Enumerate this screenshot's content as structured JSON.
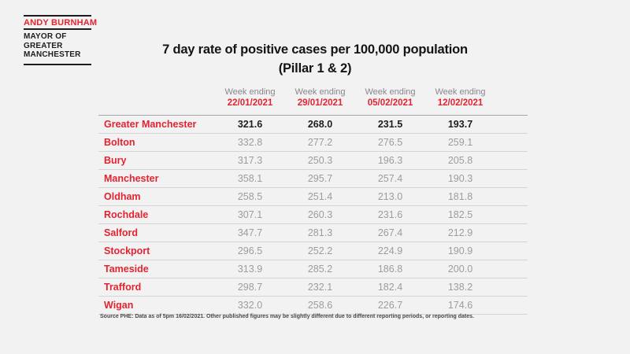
{
  "logo": {
    "name": "ANDY BURNHAM",
    "role_lines": [
      "MAYOR OF",
      "GREATER",
      "MANCHESTER"
    ]
  },
  "title": {
    "line1": "7 day rate of positive cases per 100,000 population",
    "line2": "(Pillar 1 & 2)"
  },
  "table": {
    "week_ending_label": "Week ending",
    "columns": [
      "22/01/2021",
      "29/01/2021",
      "05/02/2021",
      "12/02/2021"
    ],
    "rows": [
      {
        "area": "Greater Manchester",
        "values": [
          "321.6",
          "268.0",
          "231.5",
          "193.7"
        ],
        "emphasis": true
      },
      {
        "area": "Bolton",
        "values": [
          "332.8",
          "277.2",
          "276.5",
          "259.1"
        ],
        "emphasis": false
      },
      {
        "area": "Bury",
        "values": [
          "317.3",
          "250.3",
          "196.3",
          "205.8"
        ],
        "emphasis": false
      },
      {
        "area": "Manchester",
        "values": [
          "358.1",
          "295.7",
          "257.4",
          "190.3"
        ],
        "emphasis": false
      },
      {
        "area": "Oldham",
        "values": [
          "258.5",
          "251.4",
          "213.0",
          "181.8"
        ],
        "emphasis": false
      },
      {
        "area": "Rochdale",
        "values": [
          "307.1",
          "260.3",
          "231.6",
          "182.5"
        ],
        "emphasis": false
      },
      {
        "area": "Salford",
        "values": [
          "347.7",
          "281.3",
          "267.4",
          "212.9"
        ],
        "emphasis": false
      },
      {
        "area": "Stockport",
        "values": [
          "296.5",
          "252.2",
          "224.9",
          "190.9"
        ],
        "emphasis": false
      },
      {
        "area": "Tameside",
        "values": [
          "313.9",
          "285.2",
          "186.8",
          "200.0"
        ],
        "emphasis": false
      },
      {
        "area": "Trafford",
        "values": [
          "298.7",
          "232.1",
          "182.4",
          "138.2"
        ],
        "emphasis": false
      },
      {
        "area": "Wigan",
        "values": [
          "332.0",
          "258.6",
          "226.7",
          "174.6"
        ],
        "emphasis": false
      }
    ]
  },
  "footnote": "Source PHE: Data as of 5pm 16/02/2021. Other published figures may be slightly different due to different reporting periods, or reporting dates.",
  "colors": {
    "accent_red": "#e32430",
    "text_black": "#1d1d1f",
    "muted_gray": "#9c9ca1",
    "header_gray": "#87878c",
    "background": "#f2f2f3"
  },
  "chart_data": {
    "type": "table",
    "title": "7 day rate of positive cases per 100,000 population (Pillar 1 & 2)",
    "categories": [
      "Week ending 22/01/2021",
      "Week ending 29/01/2021",
      "Week ending 05/02/2021",
      "Week ending 12/02/2021"
    ],
    "series": [
      {
        "name": "Greater Manchester",
        "values": [
          321.6,
          268.0,
          231.5,
          193.7
        ]
      },
      {
        "name": "Bolton",
        "values": [
          332.8,
          277.2,
          276.5,
          259.1
        ]
      },
      {
        "name": "Bury",
        "values": [
          317.3,
          250.3,
          196.3,
          205.8
        ]
      },
      {
        "name": "Manchester",
        "values": [
          358.1,
          295.7,
          257.4,
          190.3
        ]
      },
      {
        "name": "Oldham",
        "values": [
          258.5,
          251.4,
          213.0,
          181.8
        ]
      },
      {
        "name": "Rochdale",
        "values": [
          307.1,
          260.3,
          231.6,
          182.5
        ]
      },
      {
        "name": "Salford",
        "values": [
          347.7,
          281.3,
          267.4,
          212.9
        ]
      },
      {
        "name": "Stockport",
        "values": [
          296.5,
          252.2,
          224.9,
          190.9
        ]
      },
      {
        "name": "Tameside",
        "values": [
          313.9,
          285.2,
          186.8,
          200.0
        ]
      },
      {
        "name": "Trafford",
        "values": [
          298.7,
          232.1,
          182.4,
          138.2
        ]
      },
      {
        "name": "Wigan",
        "values": [
          332.0,
          258.6,
          226.7,
          174.6
        ]
      }
    ],
    "annotations": [
      "Source PHE: Data as of 5pm 16/02/2021. Other published figures may be slightly different due to different reporting periods, or reporting dates."
    ]
  }
}
